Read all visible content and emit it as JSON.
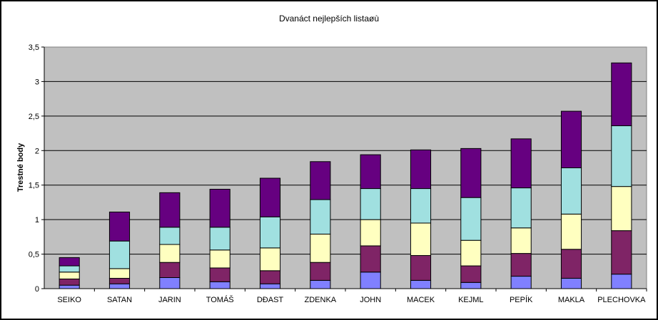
{
  "chart_data": {
    "type": "bar",
    "stacked": true,
    "title": "Dvanáct nejlepších listaøù",
    "xlabel": "",
    "ylabel": "Trestné body",
    "ylim": [
      0,
      3.5
    ],
    "yticks": [
      "0",
      "0,5",
      "1",
      "1,5",
      "2",
      "2,5",
      "3",
      "3,5"
    ],
    "ytick_values": [
      0,
      0.5,
      1,
      1.5,
      2,
      2.5,
      3,
      3.5
    ],
    "grid": true,
    "legend": "none",
    "plot_background": "#c0c0c0",
    "categories": [
      "SEIKO",
      "SATAN",
      "JARIN",
      "TOMÁŠ",
      "DÐAST",
      "ZDENKA",
      "JOHN",
      "MACEK",
      "KEJML",
      "PEPÍK",
      "MAKLA",
      "PLECHOVKA"
    ],
    "series": [
      {
        "color": "#8080ff",
        "values": [
          0.05,
          0.07,
          0.16,
          0.1,
          0.07,
          0.12,
          0.24,
          0.12,
          0.09,
          0.18,
          0.15,
          0.21
        ]
      },
      {
        "color": "#7f2466",
        "values": [
          0.09,
          0.08,
          0.22,
          0.2,
          0.19,
          0.26,
          0.38,
          0.36,
          0.24,
          0.33,
          0.42,
          0.63
        ]
      },
      {
        "color": "#ffffc0",
        "values": [
          0.1,
          0.14,
          0.26,
          0.26,
          0.33,
          0.41,
          0.38,
          0.47,
          0.37,
          0.37,
          0.51,
          0.64
        ]
      },
      {
        "color": "#a0e0e0",
        "values": [
          0.09,
          0.4,
          0.25,
          0.33,
          0.45,
          0.5,
          0.45,
          0.5,
          0.62,
          0.58,
          0.67,
          0.88
        ]
      },
      {
        "color": "#660080",
        "values": [
          0.12,
          0.42,
          0.5,
          0.55,
          0.56,
          0.55,
          0.49,
          0.56,
          0.71,
          0.71,
          0.82,
          0.91
        ]
      }
    ]
  }
}
